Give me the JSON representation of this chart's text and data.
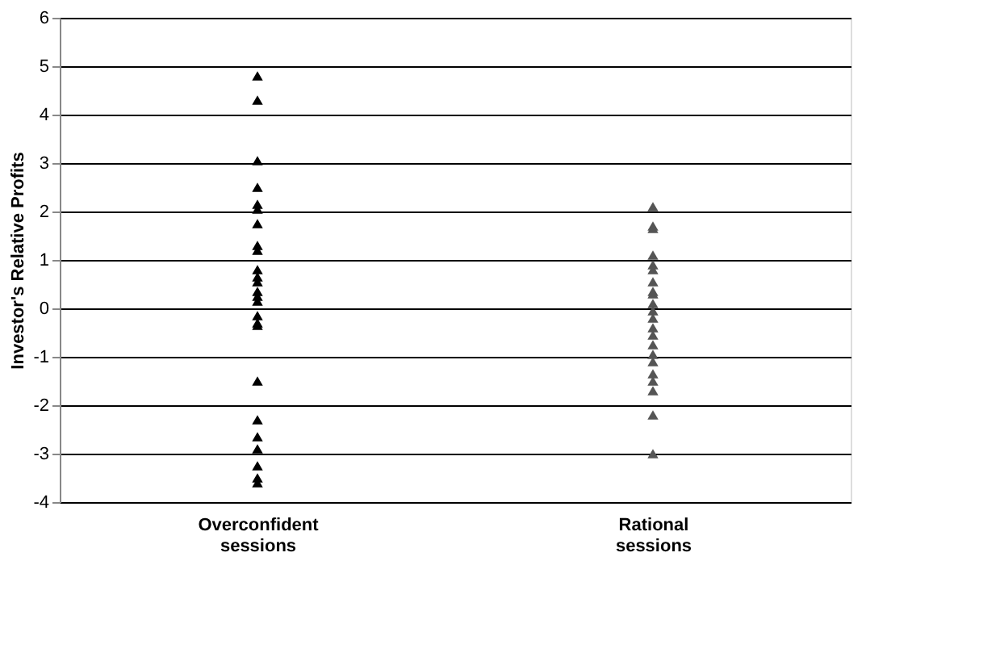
{
  "chart_data": {
    "type": "scatter",
    "ylabel": "Investor's Relative Profits",
    "categories": [
      "Overconfident sessions",
      "Rational sessions"
    ],
    "ylim": [
      -4,
      6
    ],
    "yticks": [
      -4,
      -3,
      -2,
      -1,
      0,
      1,
      2,
      3,
      4,
      5,
      6
    ],
    "grid": "y",
    "marker": "triangle",
    "series": [
      {
        "color": "#000000",
        "x": [
          "Overconfident sessions",
          "Overconfident sessions",
          "Overconfident sessions",
          "Overconfident sessions",
          "Overconfident sessions",
          "Overconfident sessions",
          "Overconfident sessions",
          "Overconfident sessions",
          "Overconfident sessions",
          "Overconfident sessions",
          "Overconfident sessions",
          "Overconfident sessions",
          "Overconfident sessions",
          "Overconfident sessions",
          "Overconfident sessions",
          "Overconfident sessions",
          "Overconfident sessions",
          "Overconfident sessions",
          "Overconfident sessions",
          "Overconfident sessions",
          "Overconfident sessions",
          "Overconfident sessions",
          "Overconfident sessions",
          "Overconfident sessions",
          "Overconfident sessions"
        ],
        "values": [
          4.8,
          4.3,
          3.05,
          2.5,
          2.15,
          2.05,
          1.75,
          1.3,
          1.2,
          0.8,
          0.65,
          0.55,
          0.35,
          0.25,
          0.15,
          -0.15,
          -0.3,
          -0.35,
          -1.5,
          -2.3,
          -2.65,
          -2.9,
          -3.25,
          -3.5,
          -3.6
        ]
      },
      {
        "color": "#555555",
        "x": [
          "Rational sessions",
          "Rational sessions",
          "Rational sessions",
          "Rational sessions",
          "Rational sessions",
          "Rational sessions",
          "Rational sessions",
          "Rational sessions",
          "Rational sessions",
          "Rational sessions",
          "Rational sessions",
          "Rational sessions",
          "Rational sessions",
          "Rational sessions",
          "Rational sessions",
          "Rational sessions",
          "Rational sessions",
          "Rational sessions",
          "Rational sessions",
          "Rational sessions",
          "Rational sessions",
          "Rational sessions"
        ],
        "values": [
          2.1,
          1.7,
          1.65,
          1.1,
          0.9,
          0.8,
          0.55,
          0.35,
          0.3,
          0.1,
          -0.05,
          -0.2,
          -0.4,
          -0.55,
          -0.75,
          -0.95,
          -1.1,
          -1.35,
          -1.5,
          -1.7,
          -2.2,
          -3.0
        ]
      }
    ]
  }
}
